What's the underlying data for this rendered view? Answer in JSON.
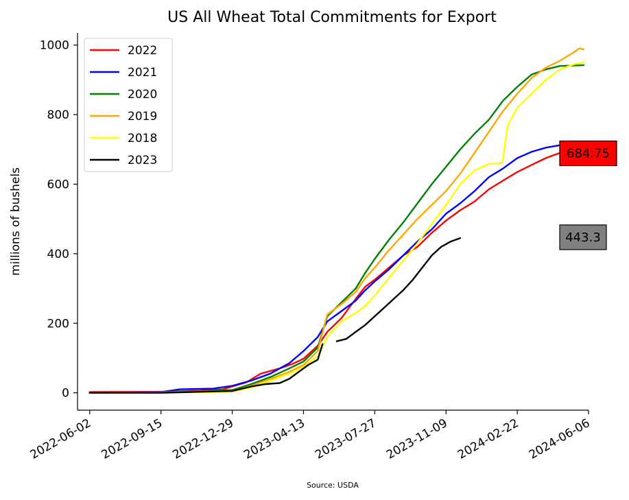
{
  "chart_data": {
    "type": "line",
    "title": "US All Wheat Total Commitments for Export",
    "xlabel": "",
    "ylabel": "millions of bushels",
    "source": "Source: USDA",
    "xlim": [
      "2022-05-15",
      "2024-06-06"
    ],
    "ylim": [
      -50,
      1035
    ],
    "x_ticks": [
      "2022-06-02",
      "2022-09-15",
      "2022-12-29",
      "2023-04-13",
      "2023-07-27",
      "2023-11-09",
      "2024-02-22",
      "2024-06-06"
    ],
    "y_ticks": [
      0,
      200,
      400,
      600,
      800,
      1000
    ],
    "grid": false,
    "legend_position": "top-left",
    "series": [
      {
        "name": "2022",
        "color": "#ff0000",
        "points": [
          [
            "2022-06-02",
            2
          ],
          [
            "2022-09-15",
            3
          ],
          [
            "2022-11-10",
            6
          ],
          [
            "2022-12-15",
            10
          ],
          [
            "2023-01-19",
            30
          ],
          [
            "2023-02-09",
            55
          ],
          [
            "2023-03-09",
            70
          ],
          [
            "2023-03-30",
            85
          ],
          [
            "2023-04-13",
            98
          ],
          [
            "2023-05-04",
            135
          ],
          [
            "2023-05-18",
            175
          ],
          [
            "2023-06-08",
            215
          ],
          [
            "2023-06-29",
            270
          ],
          [
            "2023-07-13",
            305
          ],
          [
            "2023-07-27",
            325
          ],
          [
            "2023-08-17",
            360
          ],
          [
            "2023-09-07",
            395
          ],
          [
            "2023-09-28",
            420
          ],
          [
            "2023-10-19",
            460
          ],
          [
            "2023-11-09",
            495
          ],
          [
            "2023-11-30",
            525
          ],
          [
            "2023-12-21",
            550
          ],
          [
            "2024-01-11",
            585
          ],
          [
            "2024-02-01",
            610
          ],
          [
            "2024-02-22",
            635
          ],
          [
            "2024-03-14",
            655
          ],
          [
            "2024-04-04",
            675
          ],
          [
            "2024-04-25",
            690
          ],
          [
            "2024-05-09",
            695
          ],
          [
            "2024-05-23",
            690
          ],
          [
            "2024-05-30",
            685
          ]
        ]
      },
      {
        "name": "2021",
        "color": "#0000ff",
        "points": [
          [
            "2022-06-02",
            0
          ],
          [
            "2022-09-15",
            2
          ],
          [
            "2022-10-13",
            10
          ],
          [
            "2022-12-01",
            12
          ],
          [
            "2022-12-29",
            20
          ],
          [
            "2023-01-26",
            35
          ],
          [
            "2023-02-23",
            55
          ],
          [
            "2023-03-23",
            85
          ],
          [
            "2023-04-13",
            120
          ],
          [
            "2023-05-04",
            160
          ],
          [
            "2023-05-18",
            205
          ],
          [
            "2023-06-08",
            235
          ],
          [
            "2023-06-29",
            265
          ],
          [
            "2023-07-13",
            295
          ],
          [
            "2023-07-27",
            320
          ],
          [
            "2023-08-17",
            355
          ],
          [
            "2023-09-07",
            395
          ],
          [
            "2023-09-28",
            435
          ],
          [
            "2023-10-19",
            470
          ],
          [
            "2023-11-09",
            515
          ],
          [
            "2023-11-30",
            545
          ],
          [
            "2023-12-21",
            580
          ],
          [
            "2024-01-11",
            620
          ],
          [
            "2024-02-01",
            645
          ],
          [
            "2024-02-22",
            675
          ],
          [
            "2024-03-14",
            693
          ],
          [
            "2024-04-04",
            705
          ],
          [
            "2024-04-25",
            712
          ],
          [
            "2024-05-16",
            715
          ],
          [
            "2024-05-30",
            715
          ]
        ]
      },
      {
        "name": "2020",
        "color": "#008000",
        "points": [
          [
            "2022-06-02",
            0
          ],
          [
            "2022-09-15",
            1
          ],
          [
            "2022-12-29",
            8
          ],
          [
            "2023-01-26",
            25
          ],
          [
            "2023-02-23",
            45
          ],
          [
            "2023-03-23",
            70
          ],
          [
            "2023-04-13",
            90
          ],
          [
            "2023-05-04",
            130
          ],
          [
            "2023-05-18",
            220
          ],
          [
            "2023-06-08",
            260
          ],
          [
            "2023-06-29",
            300
          ],
          [
            "2023-07-13",
            345
          ],
          [
            "2023-07-27",
            385
          ],
          [
            "2023-08-17",
            440
          ],
          [
            "2023-09-07",
            490
          ],
          [
            "2023-09-28",
            545
          ],
          [
            "2023-10-19",
            600
          ],
          [
            "2023-11-09",
            650
          ],
          [
            "2023-11-30",
            700
          ],
          [
            "2023-12-21",
            745
          ],
          [
            "2024-01-11",
            785
          ],
          [
            "2024-02-01",
            840
          ],
          [
            "2024-02-22",
            880
          ],
          [
            "2024-03-14",
            915
          ],
          [
            "2024-04-04",
            930
          ],
          [
            "2024-04-25",
            940
          ],
          [
            "2024-05-30",
            942
          ]
        ]
      },
      {
        "name": "2019",
        "color": "#ffa500",
        "points": [
          [
            "2022-06-02",
            0
          ],
          [
            "2022-09-15",
            1
          ],
          [
            "2022-12-29",
            5
          ],
          [
            "2023-01-26",
            20
          ],
          [
            "2023-02-23",
            40
          ],
          [
            "2023-03-23",
            60
          ],
          [
            "2023-04-13",
            80
          ],
          [
            "2023-05-04",
            120
          ],
          [
            "2023-05-18",
            225
          ],
          [
            "2023-06-08",
            255
          ],
          [
            "2023-06-29",
            290
          ],
          [
            "2023-07-13",
            330
          ],
          [
            "2023-07-27",
            360
          ],
          [
            "2023-08-17",
            410
          ],
          [
            "2023-09-07",
            455
          ],
          [
            "2023-09-28",
            500
          ],
          [
            "2023-10-19",
            540
          ],
          [
            "2023-11-09",
            580
          ],
          [
            "2023-11-30",
            630
          ],
          [
            "2023-12-21",
            690
          ],
          [
            "2024-01-11",
            750
          ],
          [
            "2024-02-01",
            810
          ],
          [
            "2024-02-22",
            860
          ],
          [
            "2024-03-14",
            905
          ],
          [
            "2024-04-04",
            935
          ],
          [
            "2024-04-25",
            955
          ],
          [
            "2024-05-16",
            980
          ],
          [
            "2024-05-23",
            990
          ],
          [
            "2024-05-30",
            988
          ]
        ]
      },
      {
        "name": "2018",
        "color": "#ffff00",
        "points": [
          [
            "2022-06-02",
            0
          ],
          [
            "2022-09-15",
            0
          ],
          [
            "2022-12-29",
            3
          ],
          [
            "2023-01-26",
            15
          ],
          [
            "2023-02-23",
            35
          ],
          [
            "2023-03-23",
            55
          ],
          [
            "2023-04-13",
            75
          ],
          [
            "2023-05-04",
            105
          ],
          [
            "2023-05-18",
            160
          ],
          [
            "2023-06-08",
            205
          ],
          [
            "2023-06-29",
            230
          ],
          [
            "2023-07-13",
            250
          ],
          [
            "2023-07-27",
            280
          ],
          [
            "2023-08-17",
            330
          ],
          [
            "2023-09-07",
            380
          ],
          [
            "2023-09-28",
            430
          ],
          [
            "2023-10-19",
            485
          ],
          [
            "2023-11-09",
            540
          ],
          [
            "2023-11-30",
            600
          ],
          [
            "2023-12-21",
            640
          ],
          [
            "2024-01-11",
            658
          ],
          [
            "2024-01-25",
            660
          ],
          [
            "2024-01-31",
            660
          ],
          [
            "2024-02-08",
            770
          ],
          [
            "2024-02-22",
            820
          ],
          [
            "2024-03-14",
            860
          ],
          [
            "2024-04-04",
            900
          ],
          [
            "2024-04-25",
            930
          ],
          [
            "2024-05-16",
            945
          ],
          [
            "2024-05-30",
            950
          ]
        ]
      },
      {
        "name": "2023",
        "color": "#000000",
        "segments": [
          [
            [
              "2022-06-02",
              0
            ],
            [
              "2022-09-15",
              0
            ],
            [
              "2022-12-29",
              5
            ],
            [
              "2023-01-26",
              18
            ],
            [
              "2023-02-16",
              25
            ],
            [
              "2023-03-09",
              28
            ],
            [
              "2023-03-23",
              40
            ],
            [
              "2023-04-06",
              60
            ],
            [
              "2023-04-20",
              80
            ],
            [
              "2023-05-04",
              95
            ],
            [
              "2023-05-11",
              140
            ]
          ],
          [
            [
              "2023-06-01",
              148
            ],
            [
              "2023-06-15",
              155
            ],
            [
              "2023-06-29",
              175
            ],
            [
              "2023-07-13",
              195
            ],
            [
              "2023-07-27",
              220
            ],
            [
              "2023-08-10",
              245
            ],
            [
              "2023-08-24",
              270
            ],
            [
              "2023-09-07",
              295
            ],
            [
              "2023-09-21",
              325
            ],
            [
              "2023-10-05",
              360
            ],
            [
              "2023-10-19",
              395
            ],
            [
              "2023-11-02",
              420
            ],
            [
              "2023-11-16",
              435
            ],
            [
              "2023-11-30",
              445
            ]
          ]
        ]
      }
    ],
    "callouts": [
      {
        "label": "684.75",
        "value": 684.75,
        "fill": "#ff0000"
      },
      {
        "label": "443.3",
        "value": 443.3,
        "fill": "#808080"
      }
    ]
  }
}
